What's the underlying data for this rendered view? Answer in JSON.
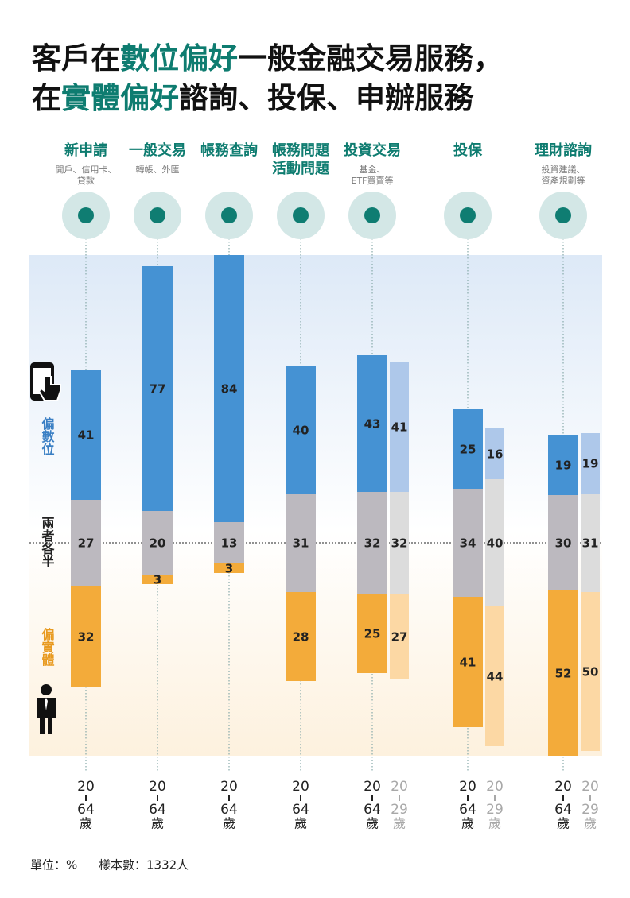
{
  "title_lines": [
    [
      {
        "text": "客戶在",
        "color": "#111111"
      },
      {
        "text": "數位偏好",
        "color": "#0e7c70"
      },
      {
        "text": "一般金融交易服務，",
        "color": "#111111"
      }
    ],
    [
      {
        "text": "在",
        "color": "#111111"
      },
      {
        "text": "實體偏好",
        "color": "#0e7c70"
      },
      {
        "text": "諮詢、投保、申辦服務",
        "color": "#111111"
      }
    ]
  ],
  "chart_data": {
    "type": "diverging-bar",
    "legend": [
      {
        "name": "偏數位",
        "color": "#3a7fc4"
      },
      {
        "name": "兩者各半",
        "color": "#222222"
      },
      {
        "name": "偏實體",
        "color": "#e89a20"
      }
    ],
    "groups": [
      {
        "lines": [
          "20",
          "64",
          "歲"
        ],
        "label_color": "#222222",
        "colors": [
          "#4592d3",
          "#bcb9bf",
          "#f3ab3a"
        ]
      },
      {
        "lines": [
          "20",
          "29",
          "歲"
        ],
        "label_color": "#a8a8a8",
        "colors": [
          "#aec8ea",
          "#dcdcdc",
          "#fcd8a4"
        ]
      }
    ],
    "categories": [
      {
        "name": [
          "新申請"
        ],
        "note": [
          "開戶、信用卡、",
          "貸款"
        ],
        "bars": [
          [
            41,
            27,
            32
          ]
        ]
      },
      {
        "name": [
          "一般交易"
        ],
        "note": [
          "轉帳、外匯"
        ],
        "bars": [
          [
            77,
            20,
            3
          ]
        ]
      },
      {
        "name": [
          "帳務查詢"
        ],
        "note": [],
        "bars": [
          [
            84,
            13,
            3
          ]
        ]
      },
      {
        "name": [
          "帳務問題",
          "活動問題"
        ],
        "note": [],
        "bars": [
          [
            40,
            31,
            28
          ]
        ]
      },
      {
        "name": [
          "投資交易"
        ],
        "note": [
          "基金、",
          "ETF買賣等"
        ],
        "bars": [
          [
            43,
            32,
            25
          ],
          [
            41,
            32,
            27
          ]
        ]
      },
      {
        "name": [
          "投保"
        ],
        "note": [],
        "bars": [
          [
            25,
            34,
            41
          ],
          [
            16,
            40,
            44
          ]
        ]
      },
      {
        "name": [
          "理財諮詢"
        ],
        "note": [
          "投資建議、",
          "資產規劃等"
        ],
        "bars": [
          [
            19,
            30,
            52
          ],
          [
            19,
            31,
            50
          ]
        ]
      }
    ]
  },
  "footer": {
    "unit": "單位：%",
    "sample": "樣本數：1332人"
  }
}
